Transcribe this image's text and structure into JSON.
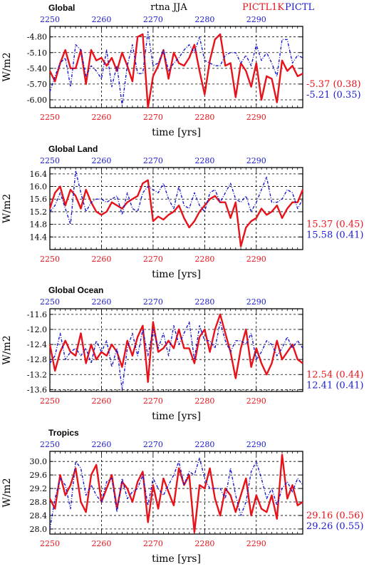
{
  "header": {
    "center_title": "rtna JJA",
    "label_red": "PICTL1K",
    "label_blue": "PICTL"
  },
  "colors": {
    "red": "#e8121a",
    "blue": "#1a1ad0",
    "black": "#000000"
  },
  "chart_data": [
    {
      "type": "line",
      "title": "Global",
      "xlabel": "time [yrs]",
      "ylabel": "W/m2",
      "xlim": [
        2250,
        2299
      ],
      "ylim": [
        -6.15,
        -4.6
      ],
      "ytick_labels": [
        "-4.80",
        "-5.10",
        "-5.40",
        "-5.70",
        "-6.00"
      ],
      "ytick_values": [
        -4.8,
        -5.1,
        -5.4,
        -5.7,
        -6.0
      ],
      "xtick_labels_bottom": [
        "2250",
        "2260",
        "2270",
        "2280",
        "2290"
      ],
      "xtick_labels_top": [
        "2250",
        "2260",
        "2270",
        "2280",
        "2290"
      ],
      "stats": {
        "red": "-5.37 (0.38)",
        "blue": "-5.21 (0.35)"
      },
      "series": [
        {
          "color": "red",
          "values": [
            -5.45,
            -5.65,
            -5.3,
            -5.05,
            -5.4,
            -5.4,
            -5.05,
            -5.7,
            -5.05,
            -5.25,
            -5.2,
            -5.35,
            -5.2,
            -5.45,
            -5.1,
            -5.35,
            -5.65,
            -4.8,
            -4.75,
            -6.15,
            -5.55,
            -5.35,
            -5.05,
            -5.6,
            -5.1,
            -5.3,
            -5.35,
            -5.2,
            -4.95,
            -5.45,
            -5.9,
            -5.25,
            -4.85,
            -4.75,
            -5.35,
            -5.3,
            -5.95,
            -5.3,
            -5.45,
            -5.75,
            -5.3,
            -6.0,
            -5.55,
            -5.6,
            -6.05,
            -5.25,
            -5.45,
            -5.35,
            -5.55,
            -5.5
          ]
        },
        {
          "color": "blue",
          "values": [
            -5.85,
            -5.55,
            -5.3,
            -5.2,
            -5.75,
            -4.95,
            -5.05,
            -5.55,
            -5.35,
            -5.45,
            -5.6,
            -5.05,
            -5.75,
            -5.35,
            -6.1,
            -5.35,
            -4.95,
            -5.5,
            -5.5,
            -4.7,
            -5.35,
            -5.3,
            -5.05,
            -5.45,
            -5.3,
            -5.2,
            -5.05,
            -4.95,
            -5.1,
            -4.8,
            -5.25,
            -5.3,
            -5.35,
            -5.35,
            -5.15,
            -5.1,
            -5.1,
            -5.3,
            -5.15,
            -5.35,
            -4.95,
            -5.25,
            -5.1,
            -5.3,
            -5.55,
            -4.85,
            -4.85,
            -5.3,
            -5.15,
            -5.2
          ]
        }
      ]
    },
    {
      "type": "line",
      "title": "Global Land",
      "xlabel": "time [yrs]",
      "ylabel": "W/m2",
      "xlim": [
        2250,
        2299
      ],
      "ylim": [
        14.0,
        16.6
      ],
      "ytick_labels": [
        "16.4",
        "16.0",
        "15.6",
        "15.2",
        "14.8",
        "14.4"
      ],
      "ytick_values": [
        16.4,
        16.0,
        15.6,
        15.2,
        14.8,
        14.4
      ],
      "xtick_labels_bottom": [
        "2250",
        "2260",
        "2270",
        "2280",
        "2290"
      ],
      "xtick_labels_top": [
        "2250",
        "2260",
        "2270",
        "2280",
        "2290"
      ],
      "stats": {
        "red": "15.37 (0.45)",
        "blue": "15.58 (0.41)"
      },
      "series": [
        {
          "color": "red",
          "values": [
            15.3,
            15.8,
            16.0,
            15.4,
            15.9,
            15.7,
            15.3,
            15.9,
            15.5,
            15.2,
            15.1,
            15.2,
            15.5,
            15.4,
            15.3,
            15.5,
            15.6,
            15.7,
            16.1,
            16.2,
            14.9,
            15.05,
            14.95,
            15.1,
            15.2,
            15.4,
            15.0,
            14.7,
            14.9,
            15.2,
            15.4,
            15.6,
            15.7,
            15.5,
            15.5,
            15.0,
            15.5,
            14.1,
            14.7,
            14.9,
            15.0,
            15.3,
            15.1,
            15.2,
            15.4,
            15.0,
            15.3,
            15.5,
            15.5,
            15.9
          ]
        },
        {
          "color": "blue",
          "values": [
            15.2,
            15.4,
            15.8,
            15.3,
            14.8,
            16.5,
            15.8,
            15.2,
            15.5,
            15.6,
            15.6,
            15.5,
            15.6,
            15.7,
            15.1,
            15.8,
            15.3,
            15.2,
            15.8,
            16.0,
            15.9,
            15.8,
            16.1,
            15.6,
            15.3,
            16.0,
            15.4,
            15.3,
            15.8,
            15.4,
            15.2,
            15.8,
            15.9,
            15.5,
            15.8,
            16.1,
            15.6,
            15.5,
            15.7,
            15.2,
            15.5,
            15.9,
            16.3,
            15.5,
            15.5,
            15.6,
            15.9,
            15.8,
            15.3,
            15.6
          ]
        }
      ]
    },
    {
      "type": "line",
      "title": "Global Ocean",
      "xlabel": "time [yrs]",
      "ylabel": "W/m2",
      "xlim": [
        2250,
        2299
      ],
      "ylim": [
        -13.65,
        -11.45
      ],
      "ytick_labels": [
        "-11.6",
        "-12.0",
        "-12.4",
        "-12.8",
        "-13.2",
        "-13.6"
      ],
      "ytick_values": [
        -11.6,
        -12.0,
        -12.4,
        -12.8,
        -13.2,
        -13.6
      ],
      "xtick_labels_bottom": [
        "2250",
        "2260",
        "2270",
        "2280",
        "2290"
      ],
      "xtick_labels_top": [
        "2250",
        "2260",
        "2270",
        "2280",
        "2290"
      ],
      "stats": {
        "red": "12.54 (0.44)",
        "blue": "12.41 (0.41)"
      },
      "series": [
        {
          "color": "red",
          "values": [
            -12.4,
            -13.1,
            -12.6,
            -12.3,
            -12.6,
            -12.7,
            -12.1,
            -12.9,
            -12.4,
            -12.8,
            -12.6,
            -12.7,
            -12.4,
            -12.6,
            -13.0,
            -12.3,
            -12.7,
            -12.2,
            -11.9,
            -13.4,
            -11.8,
            -12.6,
            -12.5,
            -12.3,
            -12.5,
            -12.0,
            -12.5,
            -12.5,
            -12.9,
            -12.2,
            -12.0,
            -12.6,
            -12.0,
            -11.6,
            -12.1,
            -12.6,
            -13.3,
            -12.5,
            -12.0,
            -13.0,
            -12.5,
            -12.9,
            -13.2,
            -12.9,
            -12.3,
            -12.8,
            -12.6,
            -12.4,
            -12.8,
            -12.9
          ]
        },
        {
          "color": "blue",
          "values": [
            -12.9,
            -12.7,
            -12.1,
            -12.8,
            -12.6,
            -12.5,
            -12.7,
            -12.5,
            -12.9,
            -12.3,
            -12.6,
            -12.3,
            -13.0,
            -12.5,
            -13.6,
            -12.5,
            -12.1,
            -12.7,
            -12.0,
            -12.7,
            -12.0,
            -12.5,
            -12.1,
            -12.7,
            -11.9,
            -12.4,
            -12.1,
            -11.8,
            -12.8,
            -11.9,
            -12.3,
            -12.3,
            -12.5,
            -11.8,
            -12.3,
            -12.6,
            -12.3,
            -12.3,
            -12.4,
            -12.1,
            -12.8,
            -12.6,
            -12.3,
            -12.4,
            -12.7,
            -12.5,
            -12.2,
            -12.5,
            -12.3,
            -12.5
          ]
        }
      ]
    },
    {
      "type": "line",
      "title": "Tropics",
      "xlabel": "time [yrs]",
      "ylabel": "W/m2",
      "xlim": [
        2250,
        2299
      ],
      "ylim": [
        27.85,
        30.3
      ],
      "ytick_labels": [
        "30.0",
        "29.6",
        "29.2",
        "28.8",
        "28.4",
        "28.0"
      ],
      "ytick_values": [
        30.0,
        29.6,
        29.2,
        28.8,
        28.4,
        28.0
      ],
      "xtick_labels_bottom": [
        "2250",
        "2260",
        "2270",
        "2280",
        "2290"
      ],
      "xtick_labels_top": [
        "2250",
        "2260",
        "2270",
        "2280",
        "2290"
      ],
      "stats": {
        "red": "29.16 (0.56)",
        "blue": "29.26 (0.55)"
      },
      "series": [
        {
          "color": "red",
          "values": [
            28.9,
            28.6,
            29.6,
            29.0,
            29.3,
            29.8,
            28.8,
            28.5,
            29.6,
            29.9,
            28.8,
            29.2,
            29.6,
            28.6,
            29.4,
            29.2,
            28.8,
            29.4,
            29.7,
            28.2,
            29.3,
            28.6,
            29.5,
            29.1,
            28.7,
            29.8,
            29.3,
            29.6,
            27.9,
            29.3,
            29.2,
            29.8,
            28.9,
            28.4,
            29.2,
            29.0,
            28.5,
            29.0,
            29.5,
            28.4,
            29.0,
            28.6,
            28.5,
            29.0,
            28.3,
            30.2,
            28.9,
            29.3,
            28.7,
            28.8
          ]
        },
        {
          "color": "blue",
          "values": [
            28.0,
            28.9,
            29.5,
            29.3,
            28.6,
            30.0,
            29.8,
            29.0,
            29.3,
            29.0,
            28.8,
            29.4,
            29.5,
            28.5,
            29.5,
            28.9,
            29.1,
            29.2,
            29.6,
            28.7,
            29.5,
            29.2,
            29.0,
            29.3,
            29.6,
            30.0,
            29.3,
            29.7,
            29.6,
            30.1,
            29.5,
            29.2,
            29.2,
            29.2,
            28.9,
            29.8,
            29.0,
            28.4,
            28.8,
            29.7,
            30.0,
            29.5,
            28.9,
            29.2,
            28.7,
            29.2,
            29.4,
            29.1,
            29.5,
            29.3
          ]
        }
      ]
    }
  ]
}
